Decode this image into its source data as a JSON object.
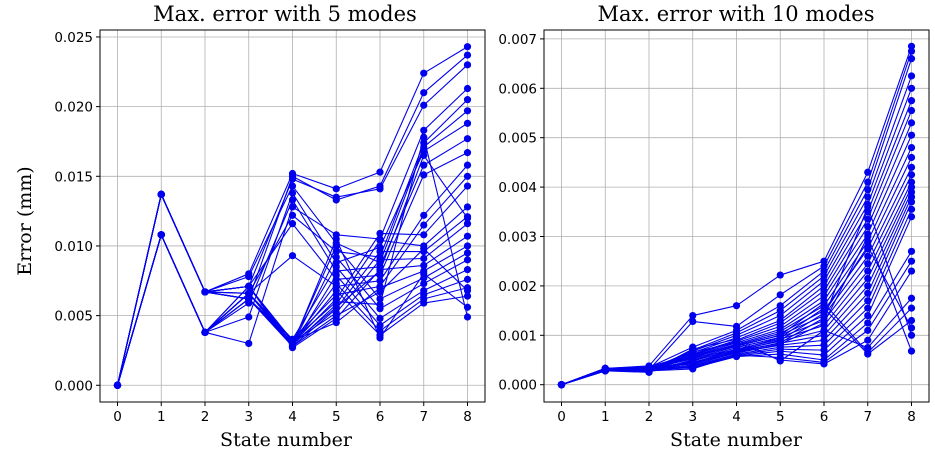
{
  "chart_data": [
    {
      "type": "line",
      "title": "Max. error with 5 modes",
      "xlabel": "State number",
      "ylabel": "Error (mm)",
      "xlim": [
        -0.4,
        8.4
      ],
      "ylim": [
        -0.0012,
        0.0255
      ],
      "xticks": [
        "0",
        "1",
        "2",
        "3",
        "4",
        "5",
        "6",
        "7",
        "8"
      ],
      "yticks": [
        "0.000",
        "0.005",
        "0.010",
        "0.015",
        "0.020",
        "0.025"
      ],
      "ytick_values": [
        0,
        0.005,
        0.01,
        0.015,
        0.02,
        0.025
      ],
      "grid": true,
      "marker": "circle",
      "color": "#0000ee",
      "x": [
        0,
        1,
        2,
        3,
        4,
        5,
        6,
        7,
        8
      ],
      "series": [
        {
          "values": [
            0,
            0.0137,
            0.0067,
            0.008,
            0.0152,
            0.0141,
            0.0153,
            0.0224,
            0.0243
          ]
        },
        {
          "values": [
            0,
            0.0137,
            0.0067,
            0.0062,
            0.015,
            0.0133,
            0.0143,
            0.021,
            0.0237
          ]
        },
        {
          "values": [
            0,
            0.0137,
            0.0067,
            0.0071,
            0.0148,
            0.0135,
            0.0141,
            0.0201,
            0.023
          ]
        },
        {
          "values": [
            0,
            0.0108,
            0.0038,
            0.003,
            0.0128,
            0.0108,
            0.0105,
            0.0183,
            0.0213
          ]
        },
        {
          "values": [
            0,
            0.0108,
            0.0038,
            0.0066,
            0.0122,
            0.0096,
            0.0092,
            0.0174,
            0.0205
          ]
        },
        {
          "values": [
            0,
            0.0137,
            0.0067,
            0.0078,
            0.0143,
            0.0102,
            0.0088,
            0.0171,
            0.0197
          ]
        },
        {
          "values": [
            0,
            0.0108,
            0.0038,
            0.0049,
            0.0138,
            0.0088,
            0.0099,
            0.0168,
            0.0188
          ]
        },
        {
          "values": [
            0,
            0.0108,
            0.0038,
            0.0059,
            0.0133,
            0.0082,
            0.0085,
            0.0158,
            0.0177
          ]
        },
        {
          "values": [
            0,
            0.0137,
            0.0067,
            0.0071,
            0.0116,
            0.0076,
            0.0079,
            0.0151,
            0.0167
          ]
        },
        {
          "values": [
            0,
            0.0108,
            0.0038,
            0.0066,
            0.0093,
            0.0071,
            0.0075,
            0.0122,
            0.0158
          ]
        },
        {
          "values": [
            0,
            0.0137,
            0.0067,
            0.0062,
            0.0033,
            0.0065,
            0.0071,
            0.0115,
            0.015
          ]
        },
        {
          "values": [
            0,
            0.0108,
            0.0038,
            0.0062,
            0.003,
            0.0062,
            0.0109,
            0.0108,
            0.0143
          ]
        },
        {
          "values": [
            0,
            0.0137,
            0.0067,
            0.0071,
            0.0029,
            0.0058,
            0.0104,
            0.01,
            0.0128
          ]
        },
        {
          "values": [
            0,
            0.0108,
            0.0038,
            0.0066,
            0.0028,
            0.0055,
            0.0096,
            0.0096,
            0.0121
          ]
        },
        {
          "values": [
            0,
            0.0137,
            0.0067,
            0.0062,
            0.0031,
            0.0052,
            0.009,
            0.0091,
            0.0116
          ]
        },
        {
          "values": [
            0,
            0.0108,
            0.0038,
            0.0071,
            0.0027,
            0.0048,
            0.0083,
            0.0086,
            0.0107
          ]
        },
        {
          "values": [
            0,
            0.0137,
            0.0067,
            0.0066,
            0.0032,
            0.0045,
            0.007,
            0.0082,
            0.01
          ]
        },
        {
          "values": [
            0,
            0.0108,
            0.0038,
            0.0062,
            0.003,
            0.01,
            0.0062,
            0.0077,
            0.0095
          ]
        },
        {
          "values": [
            0,
            0.0137,
            0.0067,
            0.0071,
            0.0029,
            0.0092,
            0.0055,
            0.0073,
            0.009
          ]
        },
        {
          "values": [
            0,
            0.0108,
            0.0038,
            0.0066,
            0.0033,
            0.0085,
            0.0048,
            0.0068,
            0.0083
          ]
        },
        {
          "values": [
            0,
            0.0137,
            0.0067,
            0.0062,
            0.0028,
            0.0079,
            0.0043,
            0.0065,
            0.0076
          ]
        },
        {
          "values": [
            0,
            0.0108,
            0.0038,
            0.0071,
            0.0031,
            0.0073,
            0.0039,
            0.0062,
            0.007
          ]
        },
        {
          "values": [
            0,
            0.0137,
            0.0067,
            0.0066,
            0.003,
            0.0068,
            0.0036,
            0.0059,
            0.0064
          ]
        },
        {
          "values": [
            0,
            0.0108,
            0.0038,
            0.0062,
            0.0029,
            0.0105,
            0.0034,
            0.008,
            0.0056
          ]
        },
        {
          "values": [
            0,
            0.0137,
            0.0067,
            0.0071,
            0.0032,
            0.006,
            0.0058,
            0.0178,
            0.0049
          ]
        },
        {
          "values": [
            0,
            0.0108,
            0.0038,
            0.0066,
            0.003,
            0.0056,
            0.0082,
            0.0165,
            0.012
          ]
        },
        {
          "values": [
            0,
            0.0137,
            0.0067,
            0.0062,
            0.0028,
            0.005,
            0.0067,
            0.0098,
            0.0068
          ]
        }
      ]
    },
    {
      "type": "line",
      "title": "Max. error with 10 modes",
      "xlabel": "State number",
      "ylabel": "",
      "xlim": [
        -0.4,
        8.4
      ],
      "ylim": [
        -0.00035,
        0.00718
      ],
      "xticks": [
        "0",
        "1",
        "2",
        "3",
        "4",
        "5",
        "6",
        "7",
        "8"
      ],
      "yticks": [
        "0.000",
        "0.001",
        "0.002",
        "0.003",
        "0.004",
        "0.005",
        "0.006",
        "0.007"
      ],
      "ytick_values": [
        0,
        0.001,
        0.002,
        0.003,
        0.004,
        0.005,
        0.006,
        0.007
      ],
      "grid": true,
      "marker": "circle",
      "color": "#0000ee",
      "x": [
        0,
        1,
        2,
        3,
        4,
        5,
        6,
        7,
        8
      ],
      "series": [
        {
          "values": [
            0,
            0.00033,
            0.00038,
            0.0014,
            0.0016,
            0.00222,
            0.0025,
            0.0043,
            0.00685
          ]
        },
        {
          "values": [
            0,
            0.0003,
            0.0003,
            0.00128,
            0.00118,
            0.00182,
            0.0024,
            0.0041,
            0.00675
          ]
        },
        {
          "values": [
            0,
            0.00032,
            0.00035,
            0.00076,
            0.0011,
            0.0016,
            0.0023,
            0.00395,
            0.0066
          ]
        },
        {
          "values": [
            0,
            0.00028,
            0.00025,
            0.0007,
            0.00105,
            0.0015,
            0.0022,
            0.0038,
            0.00625
          ]
        },
        {
          "values": [
            0,
            0.00031,
            0.00032,
            0.00068,
            0.001,
            0.0014,
            0.0021,
            0.00365,
            0.006
          ]
        },
        {
          "values": [
            0,
            0.00029,
            0.00028,
            0.00065,
            0.00095,
            0.0013,
            0.002,
            0.0035,
            0.00575
          ]
        },
        {
          "values": [
            0,
            0.00033,
            0.00036,
            0.00062,
            0.0009,
            0.00125,
            0.0019,
            0.00335,
            0.00555
          ]
        },
        {
          "values": [
            0,
            0.0003,
            0.0003,
            0.0006,
            0.00088,
            0.00118,
            0.0018,
            0.0032,
            0.0053
          ]
        },
        {
          "values": [
            0,
            0.00032,
            0.00027,
            0.00058,
            0.00085,
            0.00112,
            0.0017,
            0.00305,
            0.00505
          ]
        },
        {
          "values": [
            0,
            0.00028,
            0.00034,
            0.00056,
            0.00082,
            0.00108,
            0.0016,
            0.0029,
            0.0048
          ]
        },
        {
          "values": [
            0,
            0.00031,
            0.00029,
            0.00055,
            0.0008,
            0.00104,
            0.0015,
            0.00275,
            0.0046
          ]
        },
        {
          "values": [
            0,
            0.00029,
            0.00033,
            0.00052,
            0.00078,
            0.001,
            0.0014,
            0.0026,
            0.0044
          ]
        },
        {
          "values": [
            0,
            0.00033,
            0.00026,
            0.0005,
            0.00075,
            0.00096,
            0.0013,
            0.00245,
            0.00425
          ]
        },
        {
          "values": [
            0,
            0.0003,
            0.00031,
            0.00048,
            0.00072,
            0.00092,
            0.0012,
            0.0023,
            0.0041
          ]
        },
        {
          "values": [
            0,
            0.00032,
            0.00028,
            0.00045,
            0.0007,
            0.00088,
            0.0011,
            0.00215,
            0.004
          ]
        },
        {
          "values": [
            0,
            0.00028,
            0.00035,
            0.00042,
            0.00068,
            0.00084,
            0.001,
            0.002,
            0.0039
          ]
        },
        {
          "values": [
            0,
            0.00031,
            0.0003,
            0.0004,
            0.00065,
            0.0008,
            0.0009,
            0.00185,
            0.0038
          ]
        },
        {
          "values": [
            0,
            0.00029,
            0.00027,
            0.00038,
            0.00062,
            0.00076,
            0.0008,
            0.0017,
            0.0037
          ]
        },
        {
          "values": [
            0,
            0.00033,
            0.00032,
            0.00036,
            0.0006,
            0.00072,
            0.0007,
            0.00155,
            0.00355
          ]
        },
        {
          "values": [
            0,
            0.0003,
            0.00029,
            0.00035,
            0.00058,
            0.00068,
            0.0006,
            0.0014,
            0.0034
          ]
        },
        {
          "values": [
            0,
            0.00032,
            0.00033,
            0.00034,
            0.00057,
            0.00062,
            0.0005,
            0.00125,
            0.0027
          ]
        },
        {
          "values": [
            0,
            0.00028,
            0.00028,
            0.00032,
            0.0006,
            0.00055,
            0.00045,
            0.0011,
            0.0025
          ]
        },
        {
          "values": [
            0,
            0.00031,
            0.00031,
            0.00066,
            0.00085,
            0.0005,
            0.00042,
            0.0009,
            0.0023
          ]
        },
        {
          "values": [
            0,
            0.00029,
            0.00026,
            0.00072,
            0.00092,
            0.00048,
            0.0011,
            0.00075,
            0.00175
          ]
        },
        {
          "values": [
            0,
            0.00033,
            0.00034,
            0.0006,
            0.00078,
            0.001,
            0.00165,
            0.00065,
            0.00155
          ]
        },
        {
          "values": [
            0,
            0.0003,
            0.0003,
            0.00055,
            0.0007,
            0.00095,
            0.00155,
            0.00062,
            0.0013
          ]
        },
        {
          "values": [
            0,
            0.00032,
            0.00028,
            0.0005,
            0.00068,
            0.0009,
            0.00145,
            0.0028,
            0.00115
          ]
        },
        {
          "values": [
            0,
            0.00028,
            0.00032,
            0.00046,
            0.00066,
            0.00085,
            0.00135,
            0.0036,
            0.001
          ]
        },
        {
          "values": [
            0,
            0.00031,
            0.00029,
            0.00044,
            0.00064,
            0.00082,
            0.00125,
            0.003,
            0.00068
          ]
        }
      ]
    }
  ]
}
